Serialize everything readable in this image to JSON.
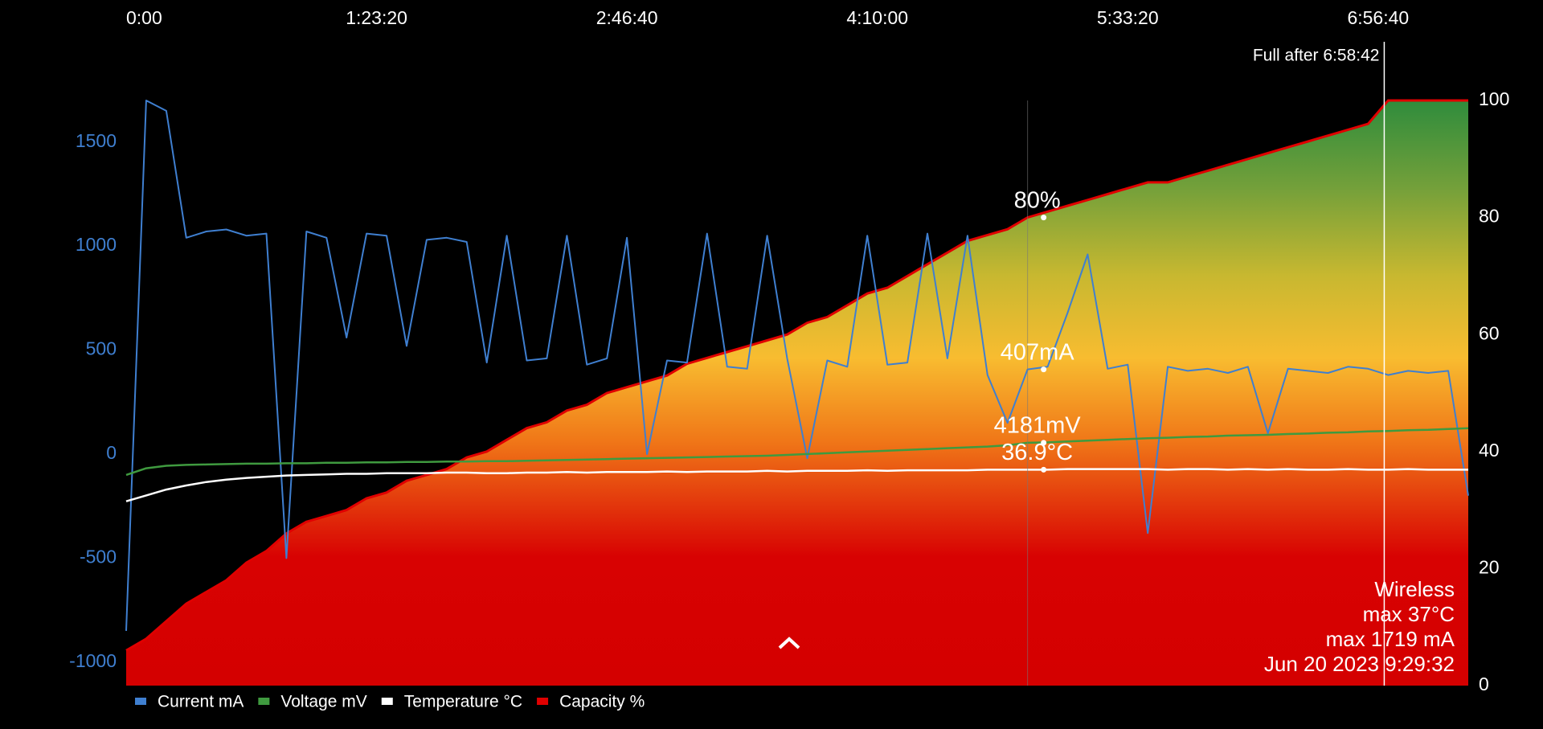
{
  "chart_data": {
    "type": "line",
    "xlim": [
      0,
      26800
    ],
    "xticks": [
      {
        "value": 0,
        "label": "0:00"
      },
      {
        "value": 5000,
        "label": "1:23:20"
      },
      {
        "value": 10000,
        "label": "2:46:40"
      },
      {
        "value": 15000,
        "label": "4:10:00"
      },
      {
        "value": 20000,
        "label": "5:33:20"
      },
      {
        "value": 25000,
        "label": "6:56:40"
      }
    ],
    "ylim": [
      -1113,
      1700
    ],
    "yticks": [
      -1000,
      -500,
      0,
      500,
      1000,
      1500
    ],
    "y2lim": [
      0,
      100
    ],
    "y2ticks": [
      0,
      20,
      40,
      60,
      80,
      100
    ],
    "x": [
      0,
      400,
      800,
      1200,
      1600,
      2000,
      2400,
      2800,
      3200,
      3600,
      4000,
      4400,
      4800,
      5200,
      5600,
      6000,
      6400,
      6800,
      7200,
      7600,
      8000,
      8400,
      8800,
      9200,
      9600,
      10000,
      10400,
      10800,
      11200,
      11600,
      12000,
      12400,
      12800,
      13200,
      13600,
      14000,
      14400,
      14800,
      15200,
      15600,
      16000,
      16400,
      16800,
      17200,
      17600,
      18000,
      18400,
      18800,
      19200,
      19600,
      20000,
      20400,
      20800,
      21200,
      21600,
      22000,
      22400,
      22800,
      23200,
      23600,
      24000,
      24400,
      24800,
      25200,
      25600,
      26000,
      26400,
      26800
    ],
    "series": [
      {
        "name": "Current mA",
        "color": "#3f7fd0",
        "values": [
          -850,
          1700,
          1650,
          1040,
          1070,
          1080,
          1050,
          1060,
          -500,
          1070,
          1040,
          560,
          1060,
          1050,
          520,
          1030,
          1040,
          1020,
          440,
          1050,
          450,
          460,
          1050,
          430,
          460,
          1040,
          0,
          450,
          440,
          1060,
          420,
          410,
          1050,
          460,
          -20,
          450,
          420,
          1050,
          430,
          440,
          1060,
          460,
          1050,
          380,
          150,
          407,
          420,
          680,
          960,
          410,
          430,
          -380,
          420,
          400,
          410,
          390,
          420,
          100,
          410,
          400,
          390,
          420,
          410,
          380,
          400,
          390,
          400,
          -200
        ]
      },
      {
        "name": "Voltage mV",
        "color": "#3f9a3f",
        "ylim": [
          3600,
          5000
        ],
        "values": [
          4104,
          4120,
          4126,
          4128,
          4129,
          4130,
          4131,
          4131,
          4132,
          4132,
          4133,
          4133,
          4134,
          4134,
          4135,
          4135,
          4136,
          4136,
          4137,
          4137,
          4138,
          4139,
          4140,
          4141,
          4142,
          4143,
          4144,
          4145,
          4146,
          4147,
          4148,
          4149,
          4150,
          4152,
          4154,
          4156,
          4158,
          4160,
          4162,
          4164,
          4166,
          4168,
          4170,
          4172,
          4175,
          4181,
          4182,
          4184,
          4186,
          4188,
          4190,
          4192,
          4193,
          4195,
          4196,
          4198,
          4199,
          4200,
          4202,
          4203,
          4205,
          4206,
          4208,
          4209,
          4211,
          4212,
          4214,
          4216
        ]
      },
      {
        "name": "Temperature °C",
        "color": "#ffffff",
        "axis": "y2",
        "values": [
          31.5,
          32.5,
          33.5,
          34.2,
          34.8,
          35.2,
          35.5,
          35.7,
          35.9,
          36.0,
          36.1,
          36.2,
          36.2,
          36.3,
          36.3,
          36.3,
          36.4,
          36.4,
          36.3,
          36.3,
          36.4,
          36.4,
          36.5,
          36.4,
          36.5,
          36.5,
          36.5,
          36.6,
          36.5,
          36.6,
          36.6,
          36.6,
          36.7,
          36.6,
          36.7,
          36.7,
          36.7,
          36.8,
          36.7,
          36.8,
          36.8,
          36.8,
          36.8,
          36.9,
          36.9,
          36.9,
          36.9,
          37.0,
          37.0,
          37.0,
          37.0,
          37.0,
          36.9,
          37.0,
          37.0,
          36.9,
          37.0,
          36.9,
          37.0,
          36.9,
          36.9,
          37.0,
          36.9,
          36.9,
          37.0,
          36.9,
          36.9,
          36.9
        ]
      },
      {
        "name": "Capacity %",
        "color": "#e00000",
        "axis": "y2",
        "area": true,
        "values": [
          6,
          8,
          11,
          14,
          16,
          18,
          21,
          23,
          26,
          28,
          29,
          30,
          32,
          33,
          35,
          36,
          37,
          39,
          40,
          42,
          44,
          45,
          47,
          48,
          50,
          51,
          52,
          53,
          55,
          56,
          57,
          58,
          59,
          60,
          62,
          63,
          65,
          67,
          68,
          70,
          72,
          74,
          76,
          77,
          78,
          80,
          81,
          82,
          83,
          84,
          85,
          86,
          86,
          87,
          88,
          89,
          90,
          91,
          92,
          93,
          94,
          95,
          96,
          100,
          100,
          100,
          100,
          100
        ]
      }
    ],
    "cursor": {
      "x": 18000,
      "labels": [
        "407mA",
        "4181mV",
        "36.9°C",
        "80%"
      ]
    },
    "full": {
      "x": 25122,
      "label": "Full after 6:58:42"
    },
    "info": [
      "Wireless",
      "max 37°C",
      "max 1719 mA",
      "Jun 20 2023 9:29:32"
    ]
  }
}
